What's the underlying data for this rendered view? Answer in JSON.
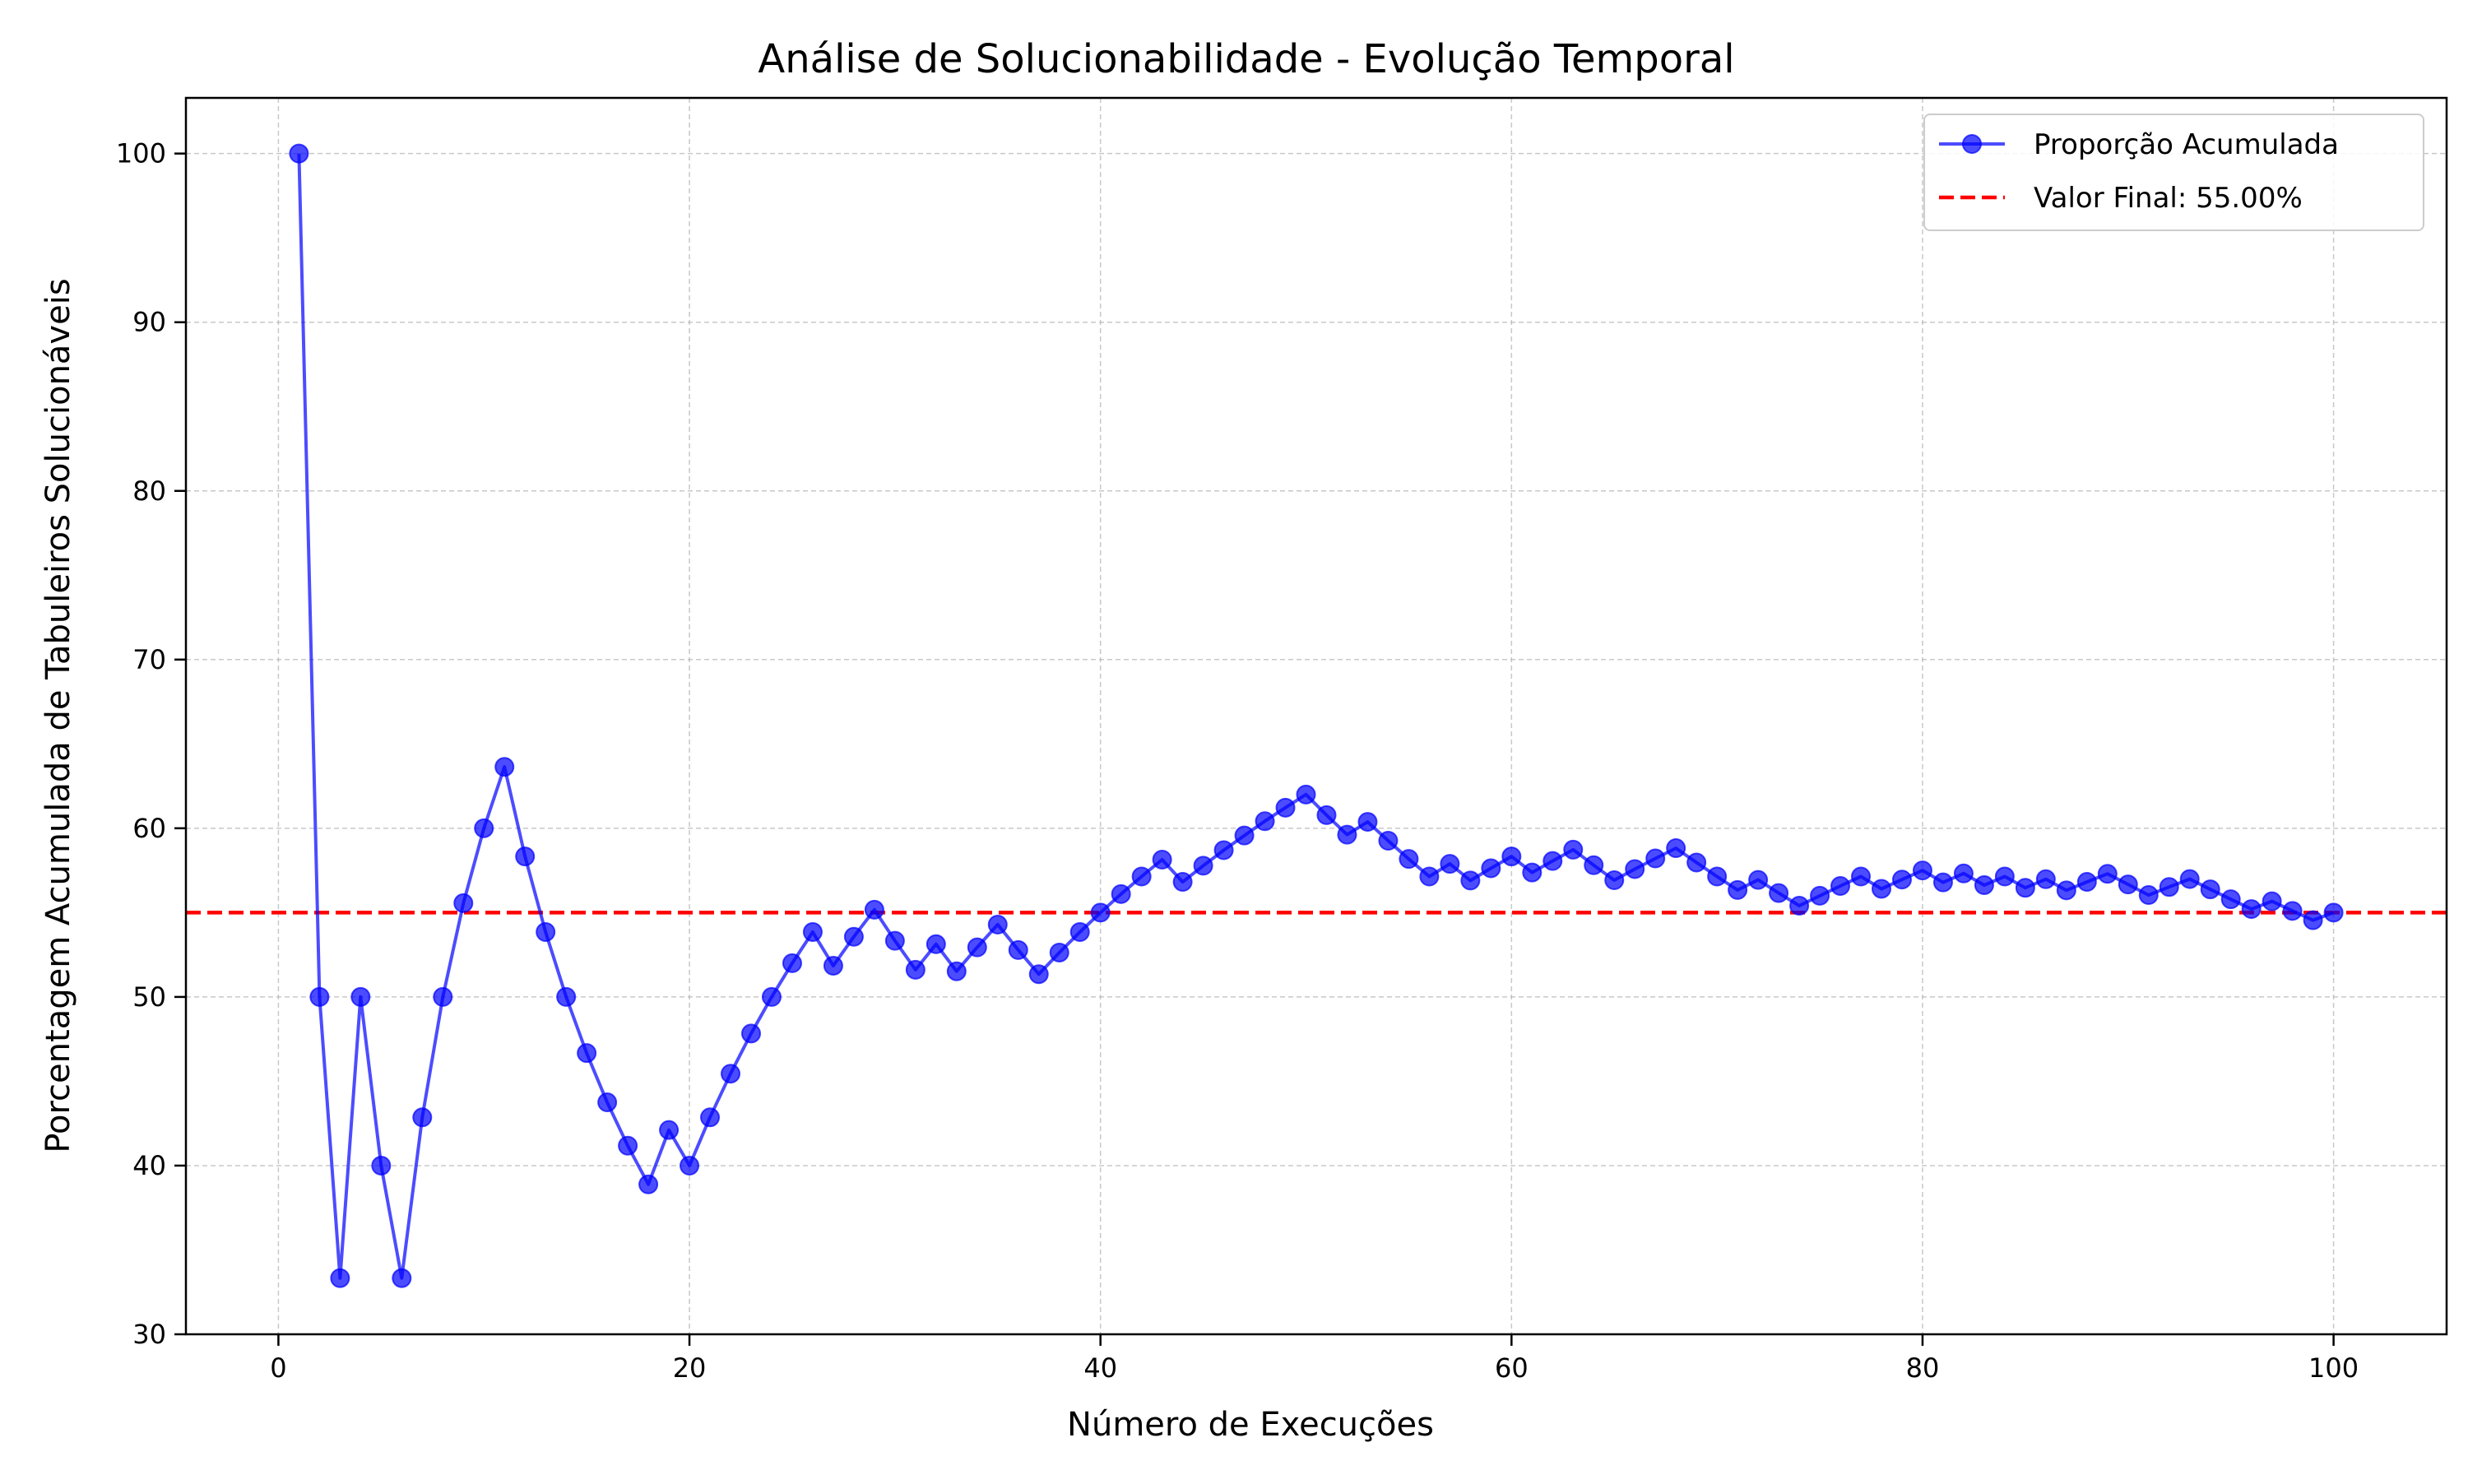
{
  "chart_data": {
    "type": "line",
    "title": "Análise de Solucionabilidade - Evolução Temporal",
    "xlabel": "Número de Execuções",
    "ylabel": "Porcentagem Acumulada de Tabuleiros Solucionáveis",
    "xlim": [
      -4.5,
      105.5
    ],
    "ylim": [
      30,
      103.3
    ],
    "xticks": [
      0,
      20,
      40,
      60,
      80,
      100
    ],
    "yticks": [
      30,
      40,
      50,
      60,
      70,
      80,
      90,
      100
    ],
    "xtick_labels": [
      "0",
      "20",
      "40",
      "60",
      "80",
      "100"
    ],
    "ytick_labels": [
      "30",
      "40",
      "50",
      "60",
      "70",
      "80",
      "90",
      "100"
    ],
    "grid": true,
    "legend_position": "top-right",
    "series": [
      {
        "name": "Proporção Acumulada",
        "color": "#0000ff",
        "marker": "circle",
        "x": [
          1,
          2,
          3,
          4,
          5,
          6,
          7,
          8,
          9,
          10,
          11,
          12,
          13,
          14,
          15,
          16,
          17,
          18,
          19,
          20,
          21,
          22,
          23,
          24,
          25,
          26,
          27,
          28,
          29,
          30,
          31,
          32,
          33,
          34,
          35,
          36,
          37,
          38,
          39,
          40,
          41,
          42,
          43,
          44,
          45,
          46,
          47,
          48,
          49,
          50,
          51,
          52,
          53,
          54,
          55,
          56,
          57,
          58,
          59,
          60,
          61,
          62,
          63,
          64,
          65,
          66,
          67,
          68,
          69,
          70,
          71,
          72,
          73,
          74,
          75,
          76,
          77,
          78,
          79,
          80,
          81,
          82,
          83,
          84,
          85,
          86,
          87,
          88,
          89,
          90,
          91,
          92,
          93,
          94,
          95,
          96,
          97,
          98,
          99,
          100
        ],
        "y": [
          100.0,
          50.0,
          33.33,
          50.0,
          40.0,
          33.33,
          42.86,
          50.0,
          55.56,
          60.0,
          63.64,
          58.33,
          53.85,
          50.0,
          46.67,
          43.75,
          41.18,
          38.89,
          42.11,
          40.0,
          42.86,
          45.45,
          47.83,
          50.0,
          52.0,
          53.85,
          51.85,
          53.57,
          55.17,
          53.33,
          51.61,
          53.13,
          51.52,
          52.94,
          54.29,
          52.78,
          51.35,
          52.63,
          53.85,
          55.0,
          56.1,
          57.14,
          58.14,
          56.82,
          57.78,
          58.7,
          59.57,
          60.42,
          61.22,
          62.0,
          60.78,
          59.62,
          60.38,
          59.26,
          58.18,
          57.14,
          57.89,
          56.9,
          57.63,
          58.33,
          57.38,
          58.06,
          58.73,
          57.81,
          56.92,
          57.58,
          58.21,
          58.82,
          57.97,
          57.14,
          56.34,
          56.94,
          56.16,
          55.41,
          56.0,
          56.58,
          57.14,
          56.41,
          56.96,
          57.5,
          56.79,
          57.32,
          56.63,
          57.14,
          56.47,
          56.98,
          56.32,
          56.82,
          57.3,
          56.67,
          56.04,
          56.52,
          56.99,
          56.38,
          55.79,
          55.21,
          55.67,
          55.1,
          54.55,
          55.0
        ]
      }
    ],
    "reference_line": {
      "name": "Valor Final: 55.00%",
      "y": 55.0,
      "color": "#ff0000",
      "style": "dashed"
    },
    "legend": {
      "series_label": "Proporção Acumulada",
      "reference_label": "Valor Final: 55.00%"
    }
  }
}
